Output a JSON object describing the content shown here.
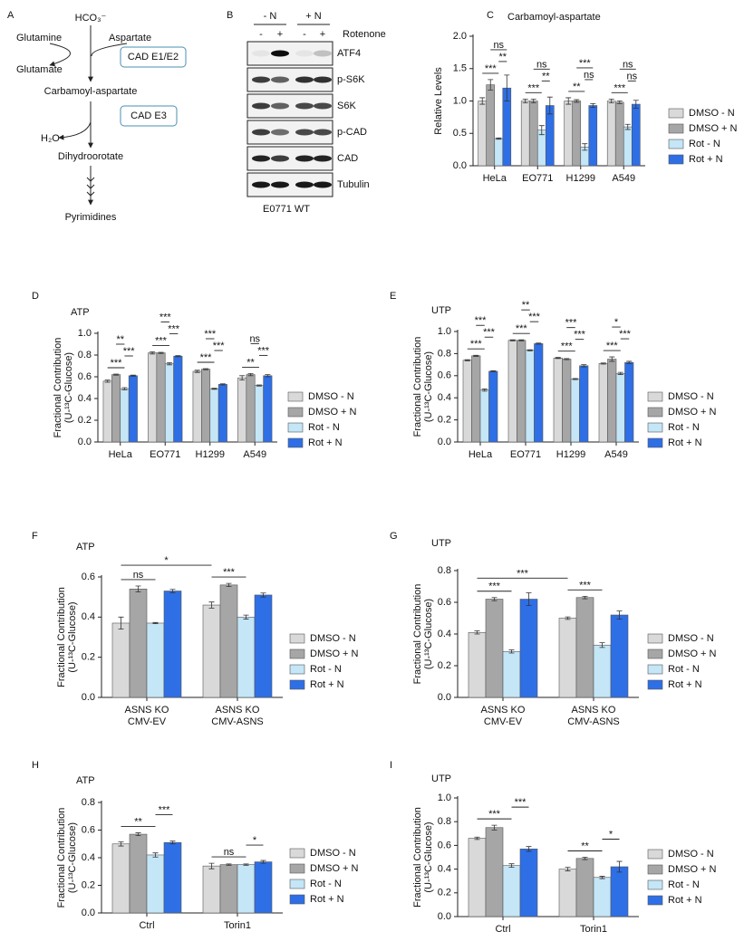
{
  "panel_labels": [
    "A",
    "B",
    "C",
    "D",
    "E",
    "F",
    "G",
    "H",
    "I"
  ],
  "pathway": {
    "hco3": "HCO₃⁻",
    "glutamine": "Glutamine",
    "aspartate": "Aspartate",
    "glutamate": "Glutamate",
    "enzyme1": "CAD E1/E2",
    "product1": "Carbamoyl-aspartate",
    "enzyme2": "CAD E3",
    "water": "H₂O",
    "product2": "Dihydroorotate",
    "product3": "Pyrimidines"
  },
  "blot": {
    "conditions": [
      "- N",
      "+ N"
    ],
    "treatment": "Rotenone",
    "lanes": [
      "-",
      "+",
      "-",
      "+"
    ],
    "rows": [
      "ATF4",
      "p-S6K",
      "S6K",
      "p-CAD",
      "CAD",
      "Tubulin"
    ],
    "cell_line": "E0771 WT"
  },
  "chart_data": [
    {
      "type": "bar",
      "title": "Carbamoyl-aspartate",
      "ylabel": [
        "Relative Levels"
      ],
      "categories": [
        "HeLa",
        "EO771",
        "H1299",
        "A549"
      ],
      "ylim": [
        0,
        2
      ],
      "yticks": [
        {
          "value": 0,
          "label": "0.0"
        },
        0.5,
        {
          "value": 1,
          "label": "1.0"
        },
        1.5,
        {
          "value": 2,
          "label": "2.0"
        }
      ],
      "series": [
        {
          "name": "DMSO - N",
          "color": "#d9d9d9",
          "values": [
            1.0,
            1.0,
            1.0,
            1.0
          ],
          "errors": [
            0.05,
            0.03,
            0.05,
            0.03
          ]
        },
        {
          "name": "DMSO + N",
          "color": "#a6a6a6",
          "values": [
            1.25,
            1.0,
            1.0,
            0.98
          ],
          "errors": [
            0.08,
            0.03,
            0.02,
            0.02
          ]
        },
        {
          "name": "Rot - N",
          "color": "#c4e6f7",
          "values": [
            0.42,
            0.55,
            0.29,
            0.6
          ],
          "errors": [
            0.01,
            0.07,
            0.05,
            0.04
          ]
        },
        {
          "name": "Rot + N",
          "color": "#2e6fe6",
          "values": [
            1.2,
            0.93,
            0.93,
            0.95
          ],
          "errors": [
            0.2,
            0.13,
            0.03,
            0.06
          ]
        }
      ],
      "comparisons": [
        {
          "from": [
            0,
            0
          ],
          "to": [
            0,
            2
          ],
          "label": "***"
        },
        {
          "from": [
            0,
            2
          ],
          "to": [
            0,
            3
          ],
          "label": "**"
        },
        {
          "from": [
            0,
            1
          ],
          "to": [
            0,
            3
          ],
          "label": "ns"
        },
        {
          "from": [
            1,
            0
          ],
          "to": [
            1,
            2
          ],
          "label": "***"
        },
        {
          "from": [
            1,
            2
          ],
          "to": [
            1,
            3
          ],
          "label": "**"
        },
        {
          "from": [
            1,
            1
          ],
          "to": [
            1,
            3
          ],
          "label": "ns"
        },
        {
          "from": [
            2,
            0
          ],
          "to": [
            2,
            2
          ],
          "label": "**"
        },
        {
          "from": [
            2,
            2
          ],
          "to": [
            2,
            3
          ],
          "label": "ns"
        },
        {
          "from": [
            2,
            1
          ],
          "to": [
            2,
            3
          ],
          "label": "***"
        },
        {
          "from": [
            3,
            0
          ],
          "to": [
            3,
            2
          ],
          "label": "***"
        },
        {
          "from": [
            3,
            2
          ],
          "to": [
            3,
            3
          ],
          "label": "ns"
        },
        {
          "from": [
            3,
            1
          ],
          "to": [
            3,
            3
          ],
          "label": "ns"
        }
      ]
    },
    {
      "type": "bar",
      "title": "ATP",
      "ylabel": [
        "Fractional Contribution",
        "(U-¹³C-Glucose)"
      ],
      "categories": [
        "HeLa",
        "EO771",
        "H1299",
        "A549"
      ],
      "ylim": [
        0,
        1
      ],
      "yticks": [
        {
          "value": 0,
          "label": "0.0"
        },
        0.2,
        0.4,
        0.6,
        0.8,
        {
          "value": 1,
          "label": "1.0"
        }
      ],
      "series": [
        {
          "name": "DMSO - N",
          "color": "#d9d9d9",
          "values": [
            0.56,
            0.82,
            0.65,
            0.59
          ],
          "errors": [
            0.01,
            0.01,
            0.01,
            0.02
          ]
        },
        {
          "name": "DMSO + N",
          "color": "#a6a6a6",
          "values": [
            0.62,
            0.82,
            0.67,
            0.62
          ],
          "errors": [
            0.005,
            0.005,
            0.005,
            0.01
          ]
        },
        {
          "name": "Rot - N",
          "color": "#c4e6f7",
          "values": [
            0.49,
            0.72,
            0.49,
            0.52
          ],
          "errors": [
            0.01,
            0.01,
            0.005,
            0.005
          ]
        },
        {
          "name": "Rot + N",
          "color": "#2e6fe6",
          "values": [
            0.61,
            0.79,
            0.53,
            0.61
          ],
          "errors": [
            0.005,
            0.005,
            0.005,
            0.01
          ]
        }
      ],
      "comparisons": [
        {
          "from": [
            0,
            0
          ],
          "to": [
            0,
            2
          ],
          "label": "***"
        },
        {
          "from": [
            0,
            2
          ],
          "to": [
            0,
            3
          ],
          "label": "***"
        },
        {
          "from": [
            0,
            1
          ],
          "to": [
            0,
            2
          ],
          "label": "**"
        },
        {
          "from": [
            1,
            0
          ],
          "to": [
            1,
            2
          ],
          "label": "***"
        },
        {
          "from": [
            1,
            2
          ],
          "to": [
            1,
            3
          ],
          "label": "***"
        },
        {
          "from": [
            1,
            1
          ],
          "to": [
            1,
            2
          ],
          "label": "***"
        },
        {
          "from": [
            2,
            0
          ],
          "to": [
            2,
            2
          ],
          "label": "***"
        },
        {
          "from": [
            2,
            2
          ],
          "to": [
            2,
            3
          ],
          "label": "***"
        },
        {
          "from": [
            2,
            1
          ],
          "to": [
            2,
            2
          ],
          "label": "***"
        },
        {
          "from": [
            3,
            0
          ],
          "to": [
            3,
            2
          ],
          "label": "**"
        },
        {
          "from": [
            3,
            2
          ],
          "to": [
            3,
            3
          ],
          "label": "***"
        },
        {
          "from": [
            3,
            1
          ],
          "to": [
            3,
            2
          ],
          "label": "ns"
        }
      ]
    },
    {
      "type": "bar",
      "title": "UTP",
      "ylabel": [
        "Fractional Contribution",
        "(U-¹³C-Glucose)"
      ],
      "categories": [
        "HeLa",
        "EO771",
        "H1299",
        "A549"
      ],
      "ylim": [
        0,
        1
      ],
      "yticks": [
        {
          "value": 0,
          "label": "0.0"
        },
        0.2,
        0.4,
        0.6,
        0.8,
        {
          "value": 1,
          "label": "1.0"
        }
      ],
      "series": [
        {
          "name": "DMSO - N",
          "color": "#d9d9d9",
          "values": [
            0.74,
            0.92,
            0.76,
            0.71
          ],
          "errors": [
            0.005,
            0.005,
            0.005,
            0.005
          ]
        },
        {
          "name": "DMSO + N",
          "color": "#a6a6a6",
          "values": [
            0.78,
            0.92,
            0.75,
            0.75
          ],
          "errors": [
            0.005,
            0.005,
            0.005,
            0.02
          ]
        },
        {
          "name": "Rot - N",
          "color": "#c4e6f7",
          "values": [
            0.47,
            0.83,
            0.57,
            0.62
          ],
          "errors": [
            0.01,
            0.005,
            0.005,
            0.01
          ]
        },
        {
          "name": "Rot + N",
          "color": "#2e6fe6",
          "values": [
            0.64,
            0.89,
            0.69,
            0.72
          ],
          "errors": [
            0.005,
            0.005,
            0.01,
            0.01
          ]
        }
      ],
      "comparisons": [
        {
          "from": [
            0,
            0
          ],
          "to": [
            0,
            2
          ],
          "label": "***"
        },
        {
          "from": [
            0,
            2
          ],
          "to": [
            0,
            3
          ],
          "label": "***"
        },
        {
          "from": [
            0,
            1
          ],
          "to": [
            0,
            2
          ],
          "label": "***"
        },
        {
          "from": [
            1,
            0
          ],
          "to": [
            1,
            2
          ],
          "label": "***"
        },
        {
          "from": [
            1,
            2
          ],
          "to": [
            1,
            3
          ],
          "label": "***"
        },
        {
          "from": [
            1,
            1
          ],
          "to": [
            1,
            2
          ],
          "label": "**"
        },
        {
          "from": [
            2,
            0
          ],
          "to": [
            2,
            2
          ],
          "label": "***"
        },
        {
          "from": [
            2,
            2
          ],
          "to": [
            2,
            3
          ],
          "label": "***"
        },
        {
          "from": [
            2,
            1
          ],
          "to": [
            2,
            2
          ],
          "label": "***"
        },
        {
          "from": [
            3,
            0
          ],
          "to": [
            3,
            2
          ],
          "label": "***"
        },
        {
          "from": [
            3,
            2
          ],
          "to": [
            3,
            3
          ],
          "label": "***"
        },
        {
          "from": [
            3,
            1
          ],
          "to": [
            3,
            2
          ],
          "label": "*"
        }
      ]
    },
    {
      "type": "bar",
      "title": "ATP",
      "ylabel": [
        "Fractional Contribution",
        "(U-¹³C-Glucose)"
      ],
      "categories": [
        "ASNS KO\nCMV-EV",
        "ASNS KO\nCMV-ASNS"
      ],
      "ylim": [
        0,
        0.6
      ],
      "yticks": [
        {
          "value": 0,
          "label": "0.0"
        },
        0.2,
        0.4,
        0.6
      ],
      "series": [
        {
          "name": "DMSO - N",
          "color": "#d9d9d9",
          "values": [
            0.37,
            0.46
          ],
          "errors": [
            0.03,
            0.015
          ]
        },
        {
          "name": "DMSO + N",
          "color": "#a6a6a6",
          "values": [
            0.54,
            0.56
          ],
          "errors": [
            0.015,
            0.008
          ]
        },
        {
          "name": "Rot - N",
          "color": "#c4e6f7",
          "values": [
            0.37,
            0.4
          ],
          "errors": [
            0.003,
            0.01
          ]
        },
        {
          "name": "Rot + N",
          "color": "#2e6fe6",
          "values": [
            0.53,
            0.51
          ],
          "errors": [
            0.008,
            0.01
          ]
        }
      ],
      "comparisons": [
        {
          "from": [
            0,
            0
          ],
          "to": [
            0,
            2
          ],
          "label": "ns"
        },
        {
          "from": [
            1,
            0
          ],
          "to": [
            1,
            2
          ],
          "label": "***"
        },
        {
          "from": [
            0,
            0
          ],
          "to": [
            1,
            0
          ],
          "label": "*"
        }
      ]
    },
    {
      "type": "bar",
      "title": "UTP",
      "ylabel": [
        "Fractional Contribution",
        "(U-¹³C-Glucose)"
      ],
      "categories": [
        "ASNS KO\nCMV-EV",
        "ASNS KO\nCMV-ASNS"
      ],
      "ylim": [
        0,
        0.8
      ],
      "yticks": [
        {
          "value": 0,
          "label": "0.0"
        },
        0.2,
        0.4,
        0.6,
        0.8
      ],
      "series": [
        {
          "name": "DMSO - N",
          "color": "#d9d9d9",
          "values": [
            0.41,
            0.5
          ],
          "errors": [
            0.01,
            0.008
          ]
        },
        {
          "name": "DMSO + N",
          "color": "#a6a6a6",
          "values": [
            0.62,
            0.63
          ],
          "errors": [
            0.01,
            0.008
          ]
        },
        {
          "name": "Rot - N",
          "color": "#c4e6f7",
          "values": [
            0.29,
            0.33
          ],
          "errors": [
            0.01,
            0.015
          ]
        },
        {
          "name": "Rot + N",
          "color": "#2e6fe6",
          "values": [
            0.62,
            0.52
          ],
          "errors": [
            0.04,
            0.025
          ]
        }
      ],
      "comparisons": [
        {
          "from": [
            0,
            0
          ],
          "to": [
            0,
            2
          ],
          "label": "***"
        },
        {
          "from": [
            1,
            0
          ],
          "to": [
            1,
            2
          ],
          "label": "***"
        },
        {
          "from": [
            0,
            0
          ],
          "to": [
            1,
            0
          ],
          "label": "***"
        }
      ]
    },
    {
      "type": "bar",
      "title": "ATP",
      "ylabel": [
        "Fractional Contribution",
        "(U-¹³C-Glucose)"
      ],
      "categories": [
        "Ctrl",
        "Torin1"
      ],
      "ylim": [
        0,
        0.8
      ],
      "yticks": [
        {
          "value": 0,
          "label": "0.0"
        },
        0.2,
        0.4,
        0.6,
        0.8
      ],
      "series": [
        {
          "name": "DMSO - N",
          "color": "#d9d9d9",
          "values": [
            0.5,
            0.34
          ],
          "errors": [
            0.015,
            0.02
          ]
        },
        {
          "name": "DMSO + N",
          "color": "#a6a6a6",
          "values": [
            0.57,
            0.35
          ],
          "errors": [
            0.01,
            0.005
          ]
        },
        {
          "name": "Rot - N",
          "color": "#c4e6f7",
          "values": [
            0.42,
            0.35
          ],
          "errors": [
            0.015,
            0.005
          ]
        },
        {
          "name": "Rot + N",
          "color": "#2e6fe6",
          "values": [
            0.51,
            0.37
          ],
          "errors": [
            0.01,
            0.01
          ]
        }
      ],
      "comparisons": [
        {
          "from": [
            0,
            0
          ],
          "to": [
            0,
            2
          ],
          "label": "**"
        },
        {
          "from": [
            0,
            2
          ],
          "to": [
            0,
            3
          ],
          "label": "***"
        },
        {
          "from": [
            1,
            0
          ],
          "to": [
            1,
            2
          ],
          "label": "ns"
        },
        {
          "from": [
            1,
            2
          ],
          "to": [
            1,
            3
          ],
          "label": "*"
        }
      ]
    },
    {
      "type": "bar",
      "title": "UTP",
      "ylabel": [
        "Fractional Contribution",
        "(U-¹³C-Glucose)"
      ],
      "categories": [
        "Ctrl",
        "Torin1"
      ],
      "ylim": [
        0,
        1
      ],
      "yticks": [
        {
          "value": 0,
          "label": "0.0"
        },
        0.2,
        0.4,
        0.6,
        0.8,
        {
          "value": 1,
          "label": "1.0"
        }
      ],
      "series": [
        {
          "name": "DMSO - N",
          "color": "#d9d9d9",
          "values": [
            0.66,
            0.4
          ],
          "errors": [
            0.01,
            0.015
          ]
        },
        {
          "name": "DMSO + N",
          "color": "#a6a6a6",
          "values": [
            0.75,
            0.49
          ],
          "errors": [
            0.02,
            0.01
          ]
        },
        {
          "name": "Rot - N",
          "color": "#c4e6f7",
          "values": [
            0.43,
            0.33
          ],
          "errors": [
            0.015,
            0.01
          ]
        },
        {
          "name": "Rot + N",
          "color": "#2e6fe6",
          "values": [
            0.57,
            0.42
          ],
          "errors": [
            0.02,
            0.045
          ]
        }
      ],
      "comparisons": [
        {
          "from": [
            0,
            0
          ],
          "to": [
            0,
            2
          ],
          "label": "***"
        },
        {
          "from": [
            0,
            2
          ],
          "to": [
            0,
            3
          ],
          "label": "***"
        },
        {
          "from": [
            1,
            0
          ],
          "to": [
            1,
            2
          ],
          "label": "**"
        },
        {
          "from": [
            1,
            2
          ],
          "to": [
            1,
            3
          ],
          "label": "*"
        }
      ]
    }
  ]
}
